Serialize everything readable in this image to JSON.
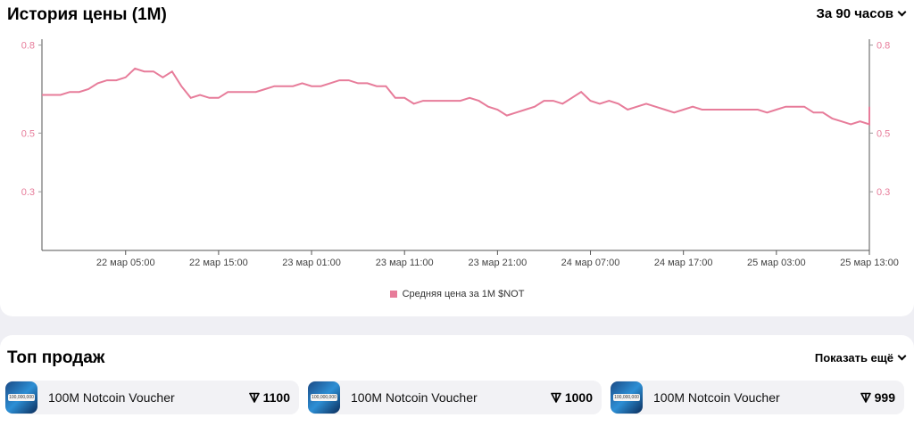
{
  "history": {
    "title": "История цены (1M)",
    "period_label": "За 90 часов"
  },
  "chart_data": {
    "type": "line",
    "y_ticks": [
      "0.8",
      "0.5",
      "0.3"
    ],
    "y_tick_values": [
      0.8,
      0.5,
      0.3
    ],
    "ylim": [
      0.1,
      0.82
    ],
    "x_ticks": [
      "22 мар 05:00",
      "22 мар 15:00",
      "23 мар 01:00",
      "23 мар 11:00",
      "23 мар 21:00",
      "24 мар 07:00",
      "24 мар 17:00",
      "25 мар 03:00",
      "25 мар 13:00"
    ],
    "x_tick_hours": [
      9,
      19,
      29,
      39,
      49,
      59,
      69,
      79,
      89
    ],
    "series": [
      {
        "name": "Средняя цена за 1M $NOT",
        "color": "#e77c9a",
        "x": [
          0,
          2,
          3,
          4,
          5,
          6,
          7,
          8,
          9,
          10,
          11,
          12,
          13,
          14,
          15,
          16,
          17,
          18,
          19,
          20,
          21,
          22,
          23,
          24,
          25,
          26,
          27,
          28,
          29,
          30,
          31,
          32,
          33,
          34,
          35,
          36,
          37,
          38,
          39,
          40,
          41,
          42,
          43,
          44,
          45,
          46,
          47,
          48,
          49,
          50,
          51,
          52,
          53,
          54,
          55,
          56,
          57,
          58,
          59,
          60,
          61,
          62,
          63,
          64,
          65,
          66,
          67,
          68,
          69,
          70,
          71,
          72,
          73,
          74,
          75,
          76,
          77,
          78,
          79,
          80,
          81,
          82,
          83,
          84,
          85,
          86,
          87,
          88,
          89
        ],
        "y": [
          0.63,
          0.63,
          0.64,
          0.64,
          0.65,
          0.67,
          0.68,
          0.68,
          0.69,
          0.72,
          0.71,
          0.71,
          0.69,
          0.71,
          0.66,
          0.62,
          0.63,
          0.62,
          0.62,
          0.64,
          0.64,
          0.64,
          0.64,
          0.65,
          0.66,
          0.66,
          0.66,
          0.67,
          0.66,
          0.66,
          0.67,
          0.68,
          0.68,
          0.67,
          0.67,
          0.66,
          0.66,
          0.62,
          0.62,
          0.6,
          0.61,
          0.61,
          0.61,
          0.61,
          0.61,
          0.62,
          0.61,
          0.59,
          0.58,
          0.56,
          0.57,
          0.58,
          0.59,
          0.61,
          0.61,
          0.6,
          0.62,
          0.64,
          0.61,
          0.6,
          0.61,
          0.6,
          0.58,
          0.59,
          0.6,
          0.59,
          0.58,
          0.57,
          0.58,
          0.59,
          0.58,
          0.58,
          0.58,
          0.58,
          0.58,
          0.58,
          0.58,
          0.57,
          0.58,
          0.59,
          0.59,
          0.59,
          0.57,
          0.57,
          0.55,
          0.54,
          0.53,
          0.54,
          0.53
        ]
      }
    ],
    "legend_position": "bottom",
    "grid": false
  },
  "legend": {
    "label": "Средняя цена за 1M $NOT"
  },
  "sales": {
    "title": "Топ продаж",
    "show_more": "Показать ещё",
    "items": [
      {
        "name": "100M Notcoin Voucher",
        "price": "1100",
        "thumb_text": "100,000,000"
      },
      {
        "name": "100M Notcoin Voucher",
        "price": "1000",
        "thumb_text": "100,000,000"
      },
      {
        "name": "100M Notcoin Voucher",
        "price": "999",
        "thumb_text": "100,000,000"
      }
    ],
    "currency_icon": "ton-icon"
  }
}
